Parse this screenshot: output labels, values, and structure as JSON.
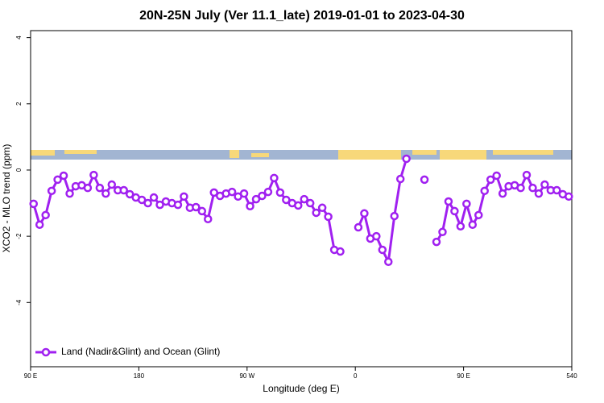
{
  "chart_data": {
    "type": "line",
    "title": "20N-25N July (Ver 11.1_late)   2019-01-01 to 2023-04-30",
    "xlabel": "Longitude (deg E)",
    "ylabel": "XCO2 - MLO trend (ppm)",
    "xlim": [
      90,
      540
    ],
    "ylim": [
      -5.94,
      4.21
    ],
    "xticks": [
      {
        "value": 90,
        "label": "90 E"
      },
      180,
      {
        "value": 270,
        "label": "90 W"
      },
      {
        "value": 360,
        "label": "0"
      },
      {
        "value": 450,
        "label": "90 E"
      },
      540
    ],
    "yticks": [
      4,
      2,
      0,
      -2,
      -4
    ],
    "legend": "bottom left",
    "x": [
      92.5,
      97.5,
      102.5,
      107.5,
      112.5,
      117.5,
      122.5,
      127.5,
      132.5,
      137.5,
      142.5,
      147.5,
      152.5,
      157.5,
      162.5,
      167.5,
      172.5,
      177.5,
      182.5,
      187.5,
      192.5,
      197.5,
      202.5,
      207.5,
      212.5,
      217.5,
      222.5,
      227.5,
      232.5,
      237.5,
      242.5,
      247.5,
      252.5,
      257.5,
      262.5,
      267.5,
      272.5,
      277.5,
      282.5,
      287.5,
      292.5,
      297.5,
      302.5,
      307.5,
      312.5,
      317.5,
      322.5,
      327.5,
      332.5,
      337.5,
      342.5,
      347.5,
      352.5,
      357.5,
      362.5,
      367.5,
      372.5,
      377.5,
      382.5,
      387.5,
      392.5,
      397.5,
      402.5,
      407.5,
      412.5,
      417.5,
      422.5,
      427.5,
      432.5,
      437.5,
      442.5,
      447.5,
      452.5,
      457.5,
      462.5,
      467.5,
      472.5,
      477.5,
      482.5,
      487.5,
      492.5,
      497.5,
      502.5,
      507.5,
      512.5,
      517.5,
      522.5,
      527.5,
      532.5,
      537.5
    ],
    "series": [
      {
        "name": "Land (Nadir&Glint) and Ocean (Glint)",
        "color": "#a020f0",
        "values": [
          -1.02,
          -1.65,
          -1.36,
          -0.63,
          -0.29,
          -0.17,
          -0.71,
          -0.49,
          -0.46,
          -0.54,
          -0.15,
          -0.54,
          -0.71,
          -0.44,
          -0.61,
          -0.61,
          -0.73,
          -0.83,
          -0.9,
          -1.0,
          -0.83,
          -1.05,
          -0.95,
          -1.0,
          -1.05,
          -0.8,
          -1.14,
          -1.12,
          -1.24,
          -1.48,
          -0.68,
          -0.78,
          -0.71,
          -0.66,
          -0.8,
          -0.71,
          -1.09,
          -0.88,
          -0.78,
          -0.66,
          -0.24,
          -0.68,
          -0.9,
          -1.0,
          -1.07,
          -0.88,
          -1.0,
          -1.29,
          -1.14,
          -1.41,
          -2.41,
          -2.46,
          null,
          null,
          -1.73,
          -1.31,
          -2.07,
          -2.0,
          -2.41,
          -2.77,
          -1.39,
          -0.27,
          0.34,
          null,
          null,
          -0.29,
          null,
          -2.17,
          -1.87,
          -0.95,
          -1.24,
          -1.7,
          -1.02,
          -1.65,
          -1.36,
          -0.63,
          -0.29,
          -0.17,
          -0.71,
          -0.49,
          -0.46,
          -0.54,
          -0.15,
          -0.54,
          -0.71,
          -0.44,
          -0.61,
          -0.61,
          -0.73,
          -0.8
        ]
      }
    ]
  }
}
